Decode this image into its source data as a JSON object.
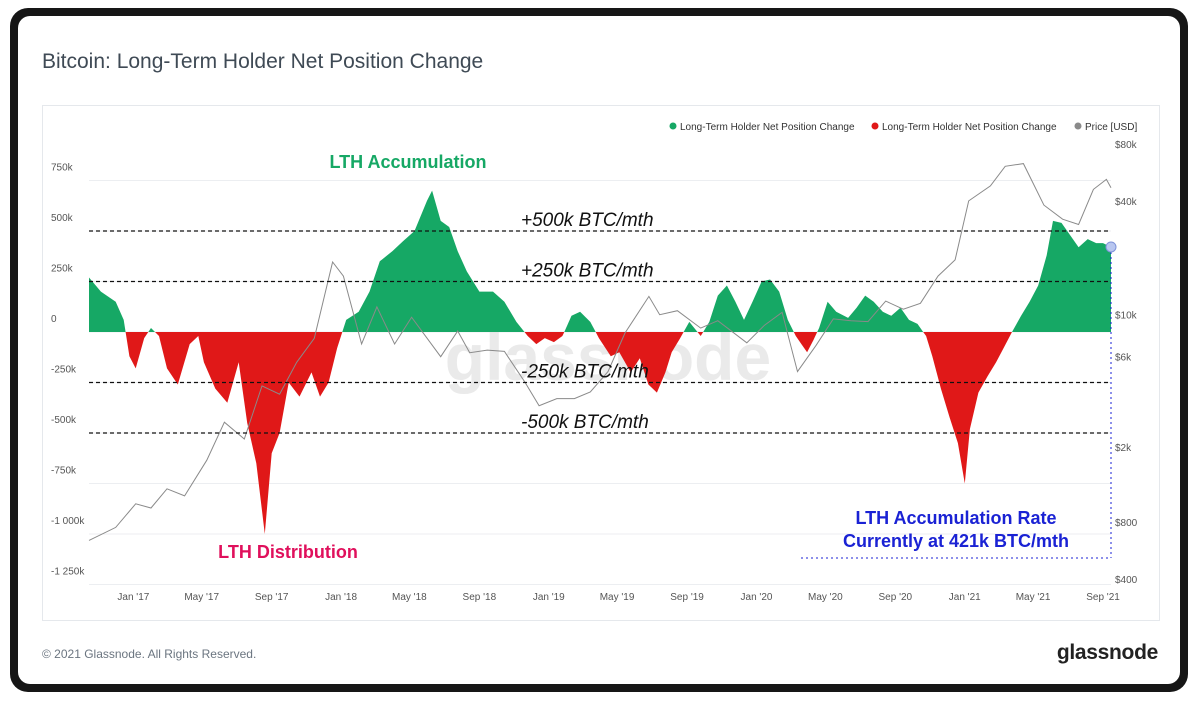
{
  "card": {
    "title": "Bitcoin: Long-Term Holder Net Position Change",
    "footer_copyright": "© 2021 Glassnode. All Rights Reserved.",
    "brand": "glassnode",
    "watermark": "glassnode"
  },
  "colors": {
    "positive": "#16a865",
    "negative": "#e01818",
    "price": "#8a8a8a",
    "annotation_blue": "#1a22d4",
    "annotation_green": "#16a865",
    "annotation_pink": "#e0105c",
    "frame": "#161616"
  },
  "chart_data": {
    "type": "area",
    "title": "Bitcoin: Long-Term Holder Net Position Change",
    "x_tick_labels": [
      "Jan '17",
      "May '17",
      "Sep '17",
      "Jan '18",
      "May '18",
      "Sep '18",
      "Jan '19",
      "May '19",
      "Sep '19",
      "Jan '20",
      "May '20",
      "Sep '20",
      "Jan '21",
      "May '21",
      "Sep '21"
    ],
    "x_range": [
      "2016-10-15",
      "2021-09-15"
    ],
    "y_left": {
      "range": [
        -1250000,
        800000
      ],
      "tick_labels": [
        "750k",
        "500k",
        "250k",
        "0",
        "-250k",
        "-500k",
        "-750k",
        "-1 000k",
        "-1 250k"
      ],
      "tick_values": [
        750000,
        500000,
        250000,
        0,
        -250000,
        -500000,
        -750000,
        -1000000,
        -1250000
      ]
    },
    "y_right": {
      "scale": "log",
      "range": [
        400,
        80000
      ],
      "tick_labels": [
        "$80k",
        "$40k",
        "$10k",
        "$6k",
        "$2k",
        "$800",
        "$400"
      ],
      "tick_values": [
        80000,
        40000,
        10000,
        6000,
        2000,
        800,
        400
      ]
    },
    "legend": {
      "placement": "top-right",
      "entries": [
        {
          "label": "Long-Term Holder Net Position Change",
          "color": "#16a865"
        },
        {
          "label": "Long-Term Holder Net Position Change",
          "color": "#e01818"
        },
        {
          "label": "Price [USD]",
          "color": "#8a8a8a"
        }
      ]
    },
    "reference_lines": [
      {
        "value": 500000,
        "label": "+500k BTC/mth"
      },
      {
        "value": 250000,
        "label": "+250k BTC/mth"
      },
      {
        "value": -250000,
        "label": "-250k BTC/mth"
      },
      {
        "value": -500000,
        "label": "-500k BTC/mth"
      }
    ],
    "annotations": [
      {
        "text": "LTH Accumulation",
        "color": "green"
      },
      {
        "text": "LTH Distribution",
        "color": "pink"
      },
      {
        "text": "LTH Accumulation Rate",
        "color": "blue"
      },
      {
        "text": "Currently at 421k BTC/mth",
        "color": "blue"
      }
    ],
    "net_position_series": {
      "name": "Long-Term Holder Net Position Change",
      "points": [
        [
          "2016-10-15",
          270000
        ],
        [
          "2016-11-05",
          200000
        ],
        [
          "2016-12-01",
          150000
        ],
        [
          "2016-12-15",
          60000
        ],
        [
          "2016-12-25",
          -120000
        ],
        [
          "2017-01-05",
          -180000
        ],
        [
          "2017-01-20",
          -30000
        ],
        [
          "2017-02-01",
          20000
        ],
        [
          "2017-02-15",
          -20000
        ],
        [
          "2017-03-01",
          -180000
        ],
        [
          "2017-03-20",
          -260000
        ],
        [
          "2017-04-10",
          -60000
        ],
        [
          "2017-04-25",
          -20000
        ],
        [
          "2017-05-05",
          -150000
        ],
        [
          "2017-05-25",
          -280000
        ],
        [
          "2017-06-15",
          -350000
        ],
        [
          "2017-07-05",
          -150000
        ],
        [
          "2017-07-20",
          -450000
        ],
        [
          "2017-08-05",
          -650000
        ],
        [
          "2017-08-20",
          -1000000
        ],
        [
          "2017-09-01",
          -600000
        ],
        [
          "2017-09-15",
          -500000
        ],
        [
          "2017-10-01",
          -250000
        ],
        [
          "2017-10-20",
          -320000
        ],
        [
          "2017-11-10",
          -200000
        ],
        [
          "2017-11-25",
          -320000
        ],
        [
          "2017-12-10",
          -250000
        ],
        [
          "2017-12-25",
          -80000
        ],
        [
          "2018-01-10",
          60000
        ],
        [
          "2018-02-01",
          100000
        ],
        [
          "2018-02-20",
          200000
        ],
        [
          "2018-03-10",
          350000
        ],
        [
          "2018-04-01",
          400000
        ],
        [
          "2018-04-20",
          450000
        ],
        [
          "2018-05-10",
          500000
        ],
        [
          "2018-06-01",
          650000
        ],
        [
          "2018-06-10",
          700000
        ],
        [
          "2018-06-25",
          550000
        ],
        [
          "2018-07-10",
          520000
        ],
        [
          "2018-07-25",
          400000
        ],
        [
          "2018-08-10",
          300000
        ],
        [
          "2018-09-01",
          200000
        ],
        [
          "2018-09-25",
          200000
        ],
        [
          "2018-10-15",
          150000
        ],
        [
          "2018-11-05",
          50000
        ],
        [
          "2018-11-25",
          -20000
        ],
        [
          "2018-12-10",
          -60000
        ],
        [
          "2018-12-25",
          -30000
        ],
        [
          "2019-01-10",
          -50000
        ],
        [
          "2019-01-25",
          -20000
        ],
        [
          "2019-02-10",
          80000
        ],
        [
          "2019-02-25",
          100000
        ],
        [
          "2019-03-15",
          50000
        ],
        [
          "2019-03-30",
          -30000
        ],
        [
          "2019-04-20",
          -120000
        ],
        [
          "2019-05-05",
          -100000
        ],
        [
          "2019-05-25",
          -200000
        ],
        [
          "2019-06-10",
          -130000
        ],
        [
          "2019-06-25",
          -260000
        ],
        [
          "2019-07-10",
          -300000
        ],
        [
          "2019-07-25",
          -200000
        ],
        [
          "2019-08-05",
          -100000
        ],
        [
          "2019-08-20",
          -30000
        ],
        [
          "2019-09-05",
          50000
        ],
        [
          "2019-09-25",
          -20000
        ],
        [
          "2019-10-10",
          50000
        ],
        [
          "2019-10-25",
          180000
        ],
        [
          "2019-11-10",
          230000
        ],
        [
          "2019-11-25",
          150000
        ],
        [
          "2019-12-10",
          60000
        ],
        [
          "2019-12-25",
          150000
        ],
        [
          "2020-01-10",
          250000
        ],
        [
          "2020-01-25",
          260000
        ],
        [
          "2020-02-10",
          200000
        ],
        [
          "2020-02-25",
          60000
        ],
        [
          "2020-03-10",
          -20000
        ],
        [
          "2020-03-20",
          -60000
        ],
        [
          "2020-03-30",
          -100000
        ],
        [
          "2020-04-10",
          -40000
        ],
        [
          "2020-04-20",
          20000
        ],
        [
          "2020-05-05",
          150000
        ],
        [
          "2020-05-20",
          100000
        ],
        [
          "2020-06-10",
          70000
        ],
        [
          "2020-06-25",
          120000
        ],
        [
          "2020-07-10",
          180000
        ],
        [
          "2020-07-25",
          150000
        ],
        [
          "2020-08-10",
          100000
        ],
        [
          "2020-08-25",
          80000
        ],
        [
          "2020-09-10",
          120000
        ],
        [
          "2020-09-25",
          60000
        ],
        [
          "2020-10-10",
          40000
        ],
        [
          "2020-10-25",
          -20000
        ],
        [
          "2020-11-05",
          -120000
        ],
        [
          "2020-11-20",
          -280000
        ],
        [
          "2020-12-05",
          -420000
        ],
        [
          "2020-12-20",
          -550000
        ],
        [
          "2021-01-01",
          -750000
        ],
        [
          "2021-01-10",
          -480000
        ],
        [
          "2021-01-25",
          -300000
        ],
        [
          "2021-02-10",
          -220000
        ],
        [
          "2021-02-25",
          -150000
        ],
        [
          "2021-03-10",
          -80000
        ],
        [
          "2021-03-25",
          0
        ],
        [
          "2021-04-10",
          80000
        ],
        [
          "2021-04-25",
          150000
        ],
        [
          "2021-05-10",
          230000
        ],
        [
          "2021-05-25",
          380000
        ],
        [
          "2021-06-05",
          550000
        ],
        [
          "2021-06-20",
          540000
        ],
        [
          "2021-07-05",
          480000
        ],
        [
          "2021-07-20",
          420000
        ],
        [
          "2021-08-05",
          460000
        ],
        [
          "2021-08-20",
          440000
        ],
        [
          "2021-09-01",
          440000
        ],
        [
          "2021-09-15",
          421000
        ]
      ]
    },
    "price_series": {
      "name": "Price [USD]",
      "points": [
        [
          "2016-10-15",
          640
        ],
        [
          "2016-12-01",
          750
        ],
        [
          "2017-01-05",
          1000
        ],
        [
          "2017-02-01",
          950
        ],
        [
          "2017-03-01",
          1200
        ],
        [
          "2017-04-01",
          1100
        ],
        [
          "2017-05-10",
          1700
        ],
        [
          "2017-06-10",
          2700
        ],
        [
          "2017-07-15",
          2200
        ],
        [
          "2017-08-15",
          4200
        ],
        [
          "2017-09-15",
          3800
        ],
        [
          "2017-10-15",
          5600
        ],
        [
          "2017-11-15",
          7500
        ],
        [
          "2017-12-17",
          19000
        ],
        [
          "2018-01-05",
          16000
        ],
        [
          "2018-02-06",
          7000
        ],
        [
          "2018-03-05",
          11000
        ],
        [
          "2018-04-05",
          7000
        ],
        [
          "2018-05-05",
          9700
        ],
        [
          "2018-06-25",
          6000
        ],
        [
          "2018-07-25",
          8200
        ],
        [
          "2018-08-15",
          6300
        ],
        [
          "2018-09-15",
          6500
        ],
        [
          "2018-10-15",
          6400
        ],
        [
          "2018-11-20",
          4400
        ],
        [
          "2018-12-15",
          3300
        ],
        [
          "2019-01-15",
          3600
        ],
        [
          "2019-02-15",
          3600
        ],
        [
          "2019-03-15",
          3900
        ],
        [
          "2019-04-15",
          5000
        ],
        [
          "2019-05-15",
          8000
        ],
        [
          "2019-06-26",
          12500
        ],
        [
          "2019-07-15",
          10000
        ],
        [
          "2019-08-15",
          10500
        ],
        [
          "2019-09-25",
          8500
        ],
        [
          "2019-10-25",
          9300
        ],
        [
          "2019-12-15",
          7100
        ],
        [
          "2020-01-15",
          8800
        ],
        [
          "2020-02-15",
          10300
        ],
        [
          "2020-03-13",
          5000
        ],
        [
          "2020-04-15",
          6900
        ],
        [
          "2020-05-15",
          9500
        ],
        [
          "2020-06-15",
          9300
        ],
        [
          "2020-07-15",
          9200
        ],
        [
          "2020-08-15",
          11800
        ],
        [
          "2020-09-15",
          10700
        ],
        [
          "2020-10-15",
          11500
        ],
        [
          "2020-11-15",
          16000
        ],
        [
          "2020-12-15",
          19500
        ],
        [
          "2021-01-08",
          40000
        ],
        [
          "2021-02-15",
          48000
        ],
        [
          "2021-03-13",
          61000
        ],
        [
          "2021-04-14",
          63000
        ],
        [
          "2021-05-20",
          38000
        ],
        [
          "2021-06-22",
          32000
        ],
        [
          "2021-07-20",
          30000
        ],
        [
          "2021-08-15",
          46000
        ],
        [
          "2021-09-07",
          52000
        ],
        [
          "2021-09-15",
          47000
        ]
      ]
    }
  }
}
